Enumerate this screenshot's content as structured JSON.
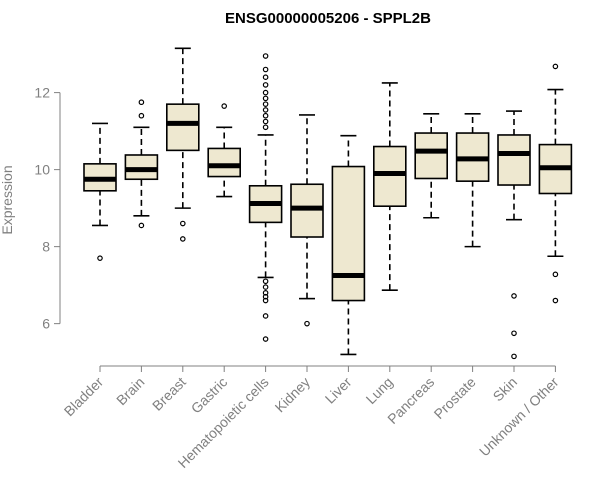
{
  "chart_data": {
    "type": "boxplot",
    "title": "ENSG00000005206 - SPPL2B",
    "xlabel": "",
    "ylabel": "Expression",
    "ylim": [
      4.9,
      13.6
    ],
    "yticks": [
      6,
      8,
      10,
      12
    ],
    "colors": {
      "box_fill": "#eee8d0",
      "stroke": "#000000",
      "axis": "#808080"
    },
    "categories": [
      "Bladder",
      "Brain",
      "Breast",
      "Gastric",
      "Hematopoietic cells",
      "Kidney",
      "Liver",
      "Lung",
      "Pancreas",
      "Prostate",
      "Skin",
      "Unknown / Other"
    ],
    "boxes": [
      {
        "name": "Bladder",
        "whisker_low": 8.55,
        "q1": 9.45,
        "median": 9.75,
        "q3": 10.15,
        "whisker_high": 11.2,
        "outliers": [
          7.7
        ]
      },
      {
        "name": "Brain",
        "whisker_low": 8.8,
        "q1": 9.75,
        "median": 10.0,
        "q3": 10.38,
        "whisker_high": 11.1,
        "outliers": [
          8.55,
          11.4,
          11.75
        ]
      },
      {
        "name": "Breast",
        "whisker_low": 9.0,
        "q1": 10.5,
        "median": 11.2,
        "q3": 11.7,
        "whisker_high": 13.15,
        "outliers": [
          8.6,
          8.2
        ]
      },
      {
        "name": "Gastric",
        "whisker_low": 9.3,
        "q1": 9.82,
        "median": 10.1,
        "q3": 10.55,
        "whisker_high": 11.1,
        "outliers": [
          11.65
        ]
      },
      {
        "name": "Hematopoietic cells",
        "whisker_low": 7.2,
        "q1": 8.63,
        "median": 9.12,
        "q3": 9.58,
        "whisker_high": 10.9,
        "outliers": [
          12.95,
          12.6,
          12.4,
          12.2,
          12.0,
          11.85,
          11.7,
          11.55,
          11.4,
          11.25,
          11.1,
          7.1,
          6.95,
          6.8,
          6.7,
          6.6,
          6.2,
          5.6
        ]
      },
      {
        "name": "Kidney",
        "whisker_low": 6.65,
        "q1": 8.25,
        "median": 9.0,
        "q3": 9.62,
        "whisker_high": 11.42,
        "outliers": [
          6.0
        ]
      },
      {
        "name": "Liver",
        "whisker_low": 5.2,
        "q1": 6.6,
        "median": 7.25,
        "q3": 10.08,
        "whisker_high": 10.88,
        "outliers": []
      },
      {
        "name": "Lung",
        "whisker_low": 6.87,
        "q1": 9.05,
        "median": 9.9,
        "q3": 10.6,
        "whisker_high": 12.25,
        "outliers": []
      },
      {
        "name": "Pancreas",
        "whisker_low": 8.75,
        "q1": 9.77,
        "median": 10.48,
        "q3": 10.95,
        "whisker_high": 11.45,
        "outliers": []
      },
      {
        "name": "Prostate",
        "whisker_low": 8.0,
        "q1": 9.7,
        "median": 10.28,
        "q3": 10.95,
        "whisker_high": 11.45,
        "outliers": []
      },
      {
        "name": "Skin",
        "whisker_low": 8.7,
        "q1": 9.6,
        "median": 10.42,
        "q3": 10.9,
        "whisker_high": 11.52,
        "outliers": [
          6.72,
          5.75,
          5.15
        ]
      },
      {
        "name": "Unknown / Other",
        "whisker_low": 7.75,
        "q1": 9.38,
        "median": 10.05,
        "q3": 10.65,
        "whisker_high": 12.08,
        "outliers": [
          12.68,
          7.28,
          6.6
        ]
      }
    ]
  }
}
